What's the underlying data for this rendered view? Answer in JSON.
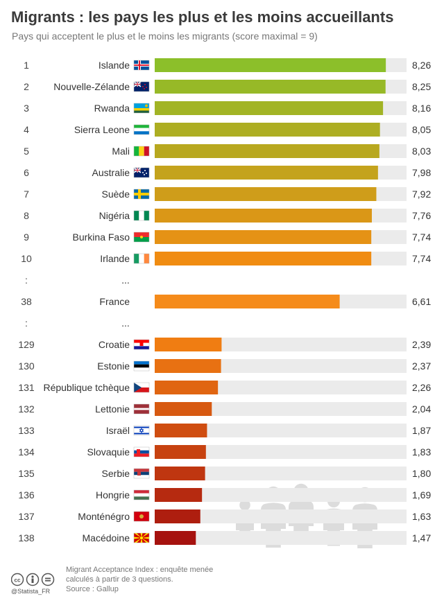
{
  "header": {
    "title": "Migrants : les pays les plus et les moins accueillants",
    "subtitle": "Pays qui acceptent le plus et le moins les migrants (score maximal = 9)"
  },
  "chart_data": {
    "type": "bar",
    "orientation": "horizontal",
    "max_score": 9,
    "rows": [
      {
        "rank": "1",
        "country": "Islande",
        "value": 8.26,
        "label": "8,26",
        "flag": "iceland-flag"
      },
      {
        "rank": "2",
        "country": "Nouvelle-Zélande",
        "value": 8.25,
        "label": "8,25",
        "flag": "new-zealand-flag"
      },
      {
        "rank": "3",
        "country": "Rwanda",
        "value": 8.16,
        "label": "8,16",
        "flag": "rwanda-flag"
      },
      {
        "rank": "4",
        "country": "Sierra Leone",
        "value": 8.05,
        "label": "8,05",
        "flag": "sierra-leone-flag"
      },
      {
        "rank": "5",
        "country": "Mali",
        "value": 8.03,
        "label": "8,03",
        "flag": "mali-flag"
      },
      {
        "rank": "6",
        "country": "Australie",
        "value": 7.98,
        "label": "7,98",
        "flag": "australia-flag"
      },
      {
        "rank": "7",
        "country": "Suède",
        "value": 7.92,
        "label": "7,92",
        "flag": "sweden-flag"
      },
      {
        "rank": "8",
        "country": "Nigéria",
        "value": 7.76,
        "label": "7,76",
        "flag": "nigeria-flag"
      },
      {
        "rank": "9",
        "country": "Burkina Faso",
        "value": 7.74,
        "label": "7,74",
        "flag": "burkina-faso-flag"
      },
      {
        "rank": "10",
        "country": "Irlande",
        "value": 7.74,
        "label": "7,74",
        "flag": "ireland-flag"
      },
      {
        "gap": true,
        "rank": ":",
        "country": "..."
      },
      {
        "rank": "38",
        "country": "France",
        "value": 6.61,
        "label": "6,61"
      },
      {
        "gap": true,
        "rank": ":",
        "country": "..."
      },
      {
        "rank": "129",
        "country": "Croatie",
        "value": 2.39,
        "label": "2,39",
        "flag": "croatia-flag"
      },
      {
        "rank": "130",
        "country": "Estonie",
        "value": 2.37,
        "label": "2,37",
        "flag": "estonia-flag"
      },
      {
        "rank": "131",
        "country": "République tchèque",
        "value": 2.26,
        "label": "2,26",
        "flag": "czech-flag"
      },
      {
        "rank": "132",
        "country": "Lettonie",
        "value": 2.04,
        "label": "2,04",
        "flag": "latvia-flag"
      },
      {
        "rank": "133",
        "country": "Israël",
        "value": 1.87,
        "label": "1,87",
        "flag": "israel-flag"
      },
      {
        "rank": "134",
        "country": "Slovaquie",
        "value": 1.83,
        "label": "1,83",
        "flag": "slovakia-flag"
      },
      {
        "rank": "135",
        "country": "Serbie",
        "value": 1.8,
        "label": "1,80",
        "flag": "serbia-flag"
      },
      {
        "rank": "136",
        "country": "Hongrie",
        "value": 1.69,
        "label": "1,69",
        "flag": "hungary-flag"
      },
      {
        "rank": "137",
        "country": "Monténégro",
        "value": 1.63,
        "label": "1,63",
        "flag": "montenegro-flag"
      },
      {
        "rank": "138",
        "country": "Macédoine",
        "value": 1.47,
        "label": "1,47",
        "flag": "macedonia-flag"
      }
    ],
    "colors": {
      "track": "#ebebeb",
      "top_start": "#8cbf2a",
      "top_end": "#f08c12",
      "france": "#f58b1a",
      "bottom_start": "#f07d12",
      "bottom_end": "#a6120f",
      "people": "#dcdcdc"
    }
  },
  "footer": {
    "note_line1": "Migrant Acceptance Index : enquête menée",
    "note_line2": "calculés à partir de 3 questions.",
    "source": "Source : Gallup",
    "handle": "@Statista_FR",
    "cc_icons": [
      "cc-icon",
      "attribution-icon",
      "no-derivatives-icon"
    ]
  }
}
